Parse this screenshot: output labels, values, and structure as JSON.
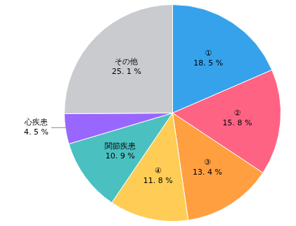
{
  "chart_data": {
    "type": "pie",
    "categories": [
      "①",
      "②",
      "③",
      "④",
      "関節疾患",
      "心疾患",
      "その他"
    ],
    "values": [
      18.5,
      15.8,
      13.4,
      11.8,
      10.9,
      4.5,
      25.1
    ],
    "value_labels": [
      "18. 5 %",
      "15. 8 %",
      "13. 4 %",
      "11. 8 %",
      "10. 9 %",
      "4. 5 %",
      "25. 1 %"
    ],
    "data_labels": true
  }
}
